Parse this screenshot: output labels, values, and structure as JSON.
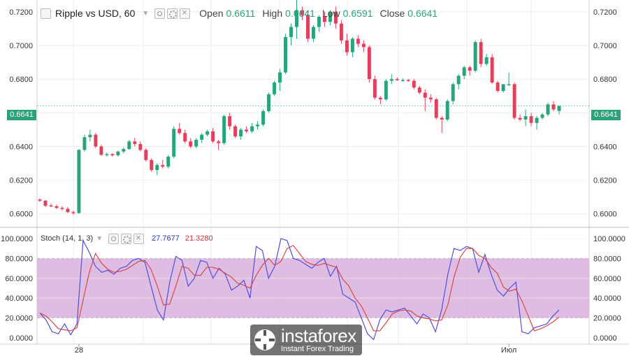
{
  "legend": {
    "symbol": "Ripple vs USD, 60",
    "open_label": "Open",
    "open": "0.6611",
    "high_label": "High",
    "high": "0.6641",
    "low_label": "Low",
    "low": "0.6591",
    "close_label": "Close",
    "close": "0.6641",
    "icons": [
      "eye-icon",
      "settings-icon",
      "close-icon"
    ]
  },
  "price_badge": "0.6641",
  "stoch_legend": {
    "name": "Stoch (14, 1, 3)",
    "k": "27.7677",
    "d": "21.3280"
  },
  "watermark": {
    "name": "instaforex",
    "tagline": "Instant Forex Trading"
  },
  "colors": {
    "up": "#2ba37a",
    "down": "#e0405a",
    "k_line": "#4f4fd8",
    "d_line": "#d84848",
    "band_fill": "#d9b2dd",
    "grid": "#eeeeee"
  },
  "chart_data": [
    {
      "type": "candlestick",
      "title": "Ripple vs USD, 60",
      "ylim": [
        0.592,
        0.727
      ],
      "y_ticks": [
        "0.7200",
        "0.7000",
        "0.6800",
        "0.6600",
        "0.6400",
        "0.6200",
        "0.6000"
      ],
      "y_tick_values": [
        0.72,
        0.7,
        0.68,
        0.66,
        0.64,
        0.62,
        0.6
      ],
      "x_tick_labels": [
        {
          "index": 7,
          "label": "28"
        },
        {
          "index": 84,
          "label": "Июл"
        }
      ],
      "last_price": 0.6641,
      "candles": [
        [
          0.6085,
          0.6092,
          0.607,
          0.6078
        ],
        [
          0.6078,
          0.6082,
          0.604,
          0.6048
        ],
        [
          0.605,
          0.606,
          0.604,
          0.6048
        ],
        [
          0.6045,
          0.6055,
          0.603,
          0.6035
        ],
        [
          0.6035,
          0.6045,
          0.602,
          0.603
        ],
        [
          0.603,
          0.604,
          0.6005,
          0.601
        ],
        [
          0.601,
          0.602,
          0.5995,
          0.6008
        ],
        [
          0.6005,
          0.6385,
          0.6,
          0.638
        ],
        [
          0.638,
          0.647,
          0.637,
          0.6455
        ],
        [
          0.6455,
          0.65,
          0.643,
          0.647
        ],
        [
          0.647,
          0.648,
          0.639,
          0.64
        ],
        [
          0.64,
          0.641,
          0.6345,
          0.635
        ],
        [
          0.635,
          0.6365,
          0.634,
          0.6355
        ],
        [
          0.6355,
          0.636,
          0.634,
          0.6348
        ],
        [
          0.6348,
          0.6375,
          0.634,
          0.637
        ],
        [
          0.637,
          0.6395,
          0.636,
          0.6385
        ],
        [
          0.6385,
          0.644,
          0.638,
          0.643
        ],
        [
          0.643,
          0.645,
          0.64,
          0.6415
        ],
        [
          0.6415,
          0.643,
          0.637,
          0.638
        ],
        [
          0.638,
          0.639,
          0.631,
          0.632
        ],
        [
          0.632,
          0.633,
          0.625,
          0.626
        ],
        [
          0.626,
          0.63,
          0.623,
          0.629
        ],
        [
          0.629,
          0.632,
          0.627,
          0.628
        ],
        [
          0.628,
          0.635,
          0.627,
          0.634
        ],
        [
          0.634,
          0.652,
          0.633,
          0.6505
        ],
        [
          0.6505,
          0.654,
          0.647,
          0.648
        ],
        [
          0.648,
          0.65,
          0.642,
          0.643
        ],
        [
          0.643,
          0.645,
          0.639,
          0.64
        ],
        [
          0.64,
          0.645,
          0.639,
          0.644
        ],
        [
          0.644,
          0.648,
          0.642,
          0.647
        ],
        [
          0.647,
          0.65,
          0.646,
          0.649
        ],
        [
          0.649,
          0.651,
          0.642,
          0.643
        ],
        [
          0.643,
          0.644,
          0.638,
          0.642
        ],
        [
          0.642,
          0.659,
          0.641,
          0.658
        ],
        [
          0.658,
          0.66,
          0.65,
          0.652
        ],
        [
          0.652,
          0.653,
          0.645,
          0.646
        ],
        [
          0.646,
          0.651,
          0.644,
          0.65
        ],
        [
          0.65,
          0.652,
          0.648,
          0.649
        ],
        [
          0.649,
          0.654,
          0.648,
          0.652
        ],
        [
          0.652,
          0.655,
          0.65,
          0.653
        ],
        [
          0.653,
          0.662,
          0.652,
          0.661
        ],
        [
          0.661,
          0.672,
          0.66,
          0.671
        ],
        [
          0.671,
          0.679,
          0.67,
          0.678
        ],
        [
          0.678,
          0.686,
          0.673,
          0.684
        ],
        [
          0.684,
          0.707,
          0.683,
          0.705
        ],
        [
          0.705,
          0.713,
          0.7,
          0.711
        ],
        [
          0.711,
          0.727,
          0.704,
          0.721
        ],
        [
          0.721,
          0.723,
          0.715,
          0.718
        ],
        [
          0.718,
          0.721,
          0.702,
          0.704
        ],
        [
          0.704,
          0.712,
          0.702,
          0.711
        ],
        [
          0.711,
          0.718,
          0.708,
          0.717
        ],
        [
          0.717,
          0.72,
          0.711,
          0.714
        ],
        [
          0.714,
          0.721,
          0.712,
          0.72
        ],
        [
          0.72,
          0.723,
          0.71,
          0.713
        ],
        [
          0.713,
          0.715,
          0.701,
          0.703
        ],
        [
          0.703,
          0.707,
          0.694,
          0.696
        ],
        [
          0.696,
          0.705,
          0.693,
          0.704
        ],
        [
          0.704,
          0.706,
          0.699,
          0.701
        ],
        [
          0.701,
          0.703,
          0.696,
          0.699
        ],
        [
          0.699,
          0.7,
          0.678,
          0.68
        ],
        [
          0.68,
          0.682,
          0.668,
          0.669
        ],
        [
          0.669,
          0.67,
          0.665,
          0.668
        ],
        [
          0.668,
          0.68,
          0.667,
          0.679
        ],
        [
          0.679,
          0.683,
          0.677,
          0.68
        ],
        [
          0.68,
          0.681,
          0.679,
          0.6795
        ],
        [
          0.6795,
          0.6805,
          0.6785,
          0.6795
        ],
        [
          0.6795,
          0.68,
          0.6785,
          0.679
        ],
        [
          0.679,
          0.68,
          0.674,
          0.675
        ],
        [
          0.675,
          0.676,
          0.671,
          0.672
        ],
        [
          0.672,
          0.674,
          0.661,
          0.669
        ],
        [
          0.669,
          0.671,
          0.666,
          0.668
        ],
        [
          0.668,
          0.669,
          0.656,
          0.657
        ],
        [
          0.657,
          0.658,
          0.648,
          0.656
        ],
        [
          0.656,
          0.668,
          0.655,
          0.667
        ],
        [
          0.667,
          0.678,
          0.665,
          0.677
        ],
        [
          0.677,
          0.683,
          0.674,
          0.682
        ],
        [
          0.682,
          0.688,
          0.68,
          0.687
        ],
        [
          0.687,
          0.688,
          0.682,
          0.685
        ],
        [
          0.685,
          0.703,
          0.684,
          0.702
        ],
        [
          0.702,
          0.704,
          0.687,
          0.689
        ],
        [
          0.689,
          0.695,
          0.688,
          0.693
        ],
        [
          0.693,
          0.695,
          0.677,
          0.678
        ],
        [
          0.678,
          0.679,
          0.672,
          0.673
        ],
        [
          0.673,
          0.677,
          0.672,
          0.677
        ],
        [
          0.677,
          0.684,
          0.676,
          0.677
        ],
        [
          0.677,
          0.678,
          0.656,
          0.657
        ],
        [
          0.657,
          0.659,
          0.655,
          0.656
        ],
        [
          0.656,
          0.662,
          0.652,
          0.658
        ],
        [
          0.658,
          0.66,
          0.652,
          0.654
        ],
        [
          0.654,
          0.658,
          0.65,
          0.657
        ],
        [
          0.657,
          0.66,
          0.656,
          0.659
        ],
        [
          0.659,
          0.666,
          0.658,
          0.665
        ],
        [
          0.665,
          0.667,
          0.661,
          0.662
        ],
        [
          0.6611,
          0.6641,
          0.6591,
          0.6641
        ]
      ]
    },
    {
      "type": "line",
      "title": "Stoch (14, 1, 3)",
      "ylim": [
        -5,
        105
      ],
      "y_ticks": [
        "100.0000",
        "80.0000",
        "60.0000",
        "40.0000",
        "20.0000",
        "0.0000"
      ],
      "y_tick_values": [
        100,
        80,
        60,
        40,
        20,
        0
      ],
      "band": [
        20,
        80
      ],
      "series": [
        {
          "name": "%K",
          "values": [
            25,
            18,
            6,
            4,
            14,
            3,
            14,
            98,
            86,
            72,
            66,
            68,
            64,
            70,
            72,
            78,
            80,
            76,
            52,
            28,
            18,
            56,
            82,
            78,
            52,
            60,
            78,
            76,
            60,
            70,
            64,
            48,
            52,
            58,
            40,
            92,
            88,
            60,
            72,
            100,
            98,
            80,
            78,
            74,
            70,
            76,
            80,
            62,
            72,
            44,
            40,
            36,
            20,
            4,
            -2,
            18,
            28,
            26,
            28,
            30,
            22,
            14,
            24,
            20,
            6,
            28,
            64,
            90,
            88,
            92,
            90,
            66,
            84,
            64,
            48,
            42,
            50,
            56,
            6,
            4,
            10,
            12,
            14,
            22,
            28
          ]
        },
        {
          "name": "%D",
          "values": [
            25,
            22,
            16,
            9,
            8,
            7,
            10,
            38,
            66,
            85,
            75,
            69,
            66,
            67,
            69,
            73,
            77,
            78,
            69,
            52,
            33,
            34,
            52,
            72,
            70,
            63,
            63,
            71,
            71,
            69,
            65,
            61,
            55,
            53,
            50,
            63,
            73,
            80,
            73,
            77,
            90,
            93,
            85,
            77,
            74,
            73,
            75,
            73,
            71,
            59,
            52,
            40,
            32,
            20,
            7,
            7,
            15,
            24,
            27,
            28,
            27,
            22,
            20,
            19,
            17,
            18,
            33,
            61,
            81,
            90,
            90,
            83,
            80,
            71,
            65,
            51,
            47,
            49,
            37,
            22,
            7,
            9,
            12,
            16,
            21
          ]
        }
      ]
    }
  ]
}
